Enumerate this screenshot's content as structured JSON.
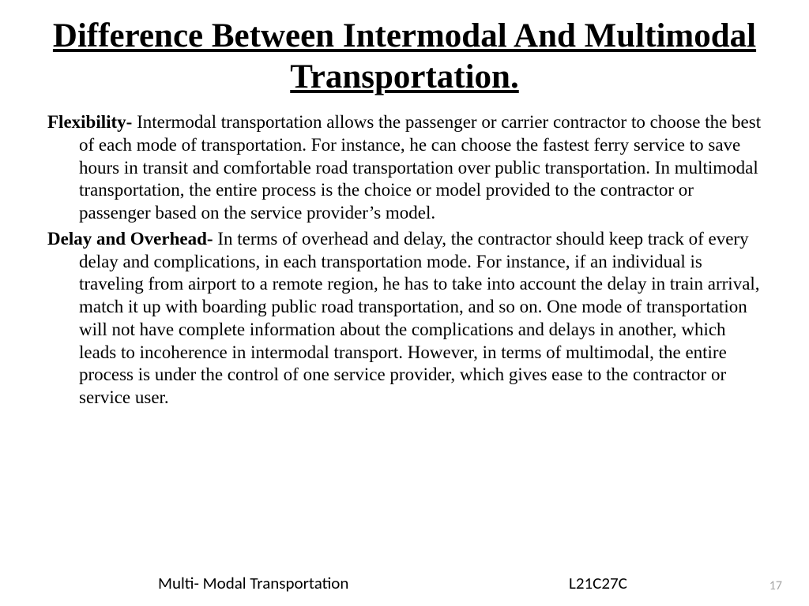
{
  "title": "Difference Between Intermodal And Multimodal Transportation.",
  "sections": [
    {
      "label": "Flexibility- ",
      "text": "Intermodal transportation allows the passenger or carrier contractor to choose the best of each mode of transportation. For instance, he can choose the fastest ferry service to save hours in transit and comfortable road transportation over public transportation. In multimodal transportation, the entire process is the choice or model provided to the contractor or passenger based on the service provider’s model."
    },
    {
      "label": "Delay and Overhead- ",
      "text": "In terms of overhead and delay, the contractor should keep track of every delay and complications, in each transportation mode. For instance, if an individual is traveling from airport to a remote region, he has to take into account the delay in train arrival, match it up with boarding public road transportation, and so on. One mode of transportation will not have complete information about the complications and delays in another, which leads to incoherence in intermodal transport. However, in terms of multimodal, the entire process is under the control of one service provider, which gives ease to the contractor or service user."
    }
  ],
  "footer": {
    "left": "Multi- Modal Transportation",
    "right": "L21C27C",
    "page": "17"
  },
  "style": {
    "background_color": "#ffffff",
    "text_color": "#000000",
    "title_fontsize": 43,
    "body_fontsize": 23,
    "footer_fontsize": 21,
    "pagenum_color": "#a6a6a6",
    "pagenum_fontsize": 16,
    "font_family_body": "Times New Roman",
    "font_family_footer": "Calibri"
  }
}
